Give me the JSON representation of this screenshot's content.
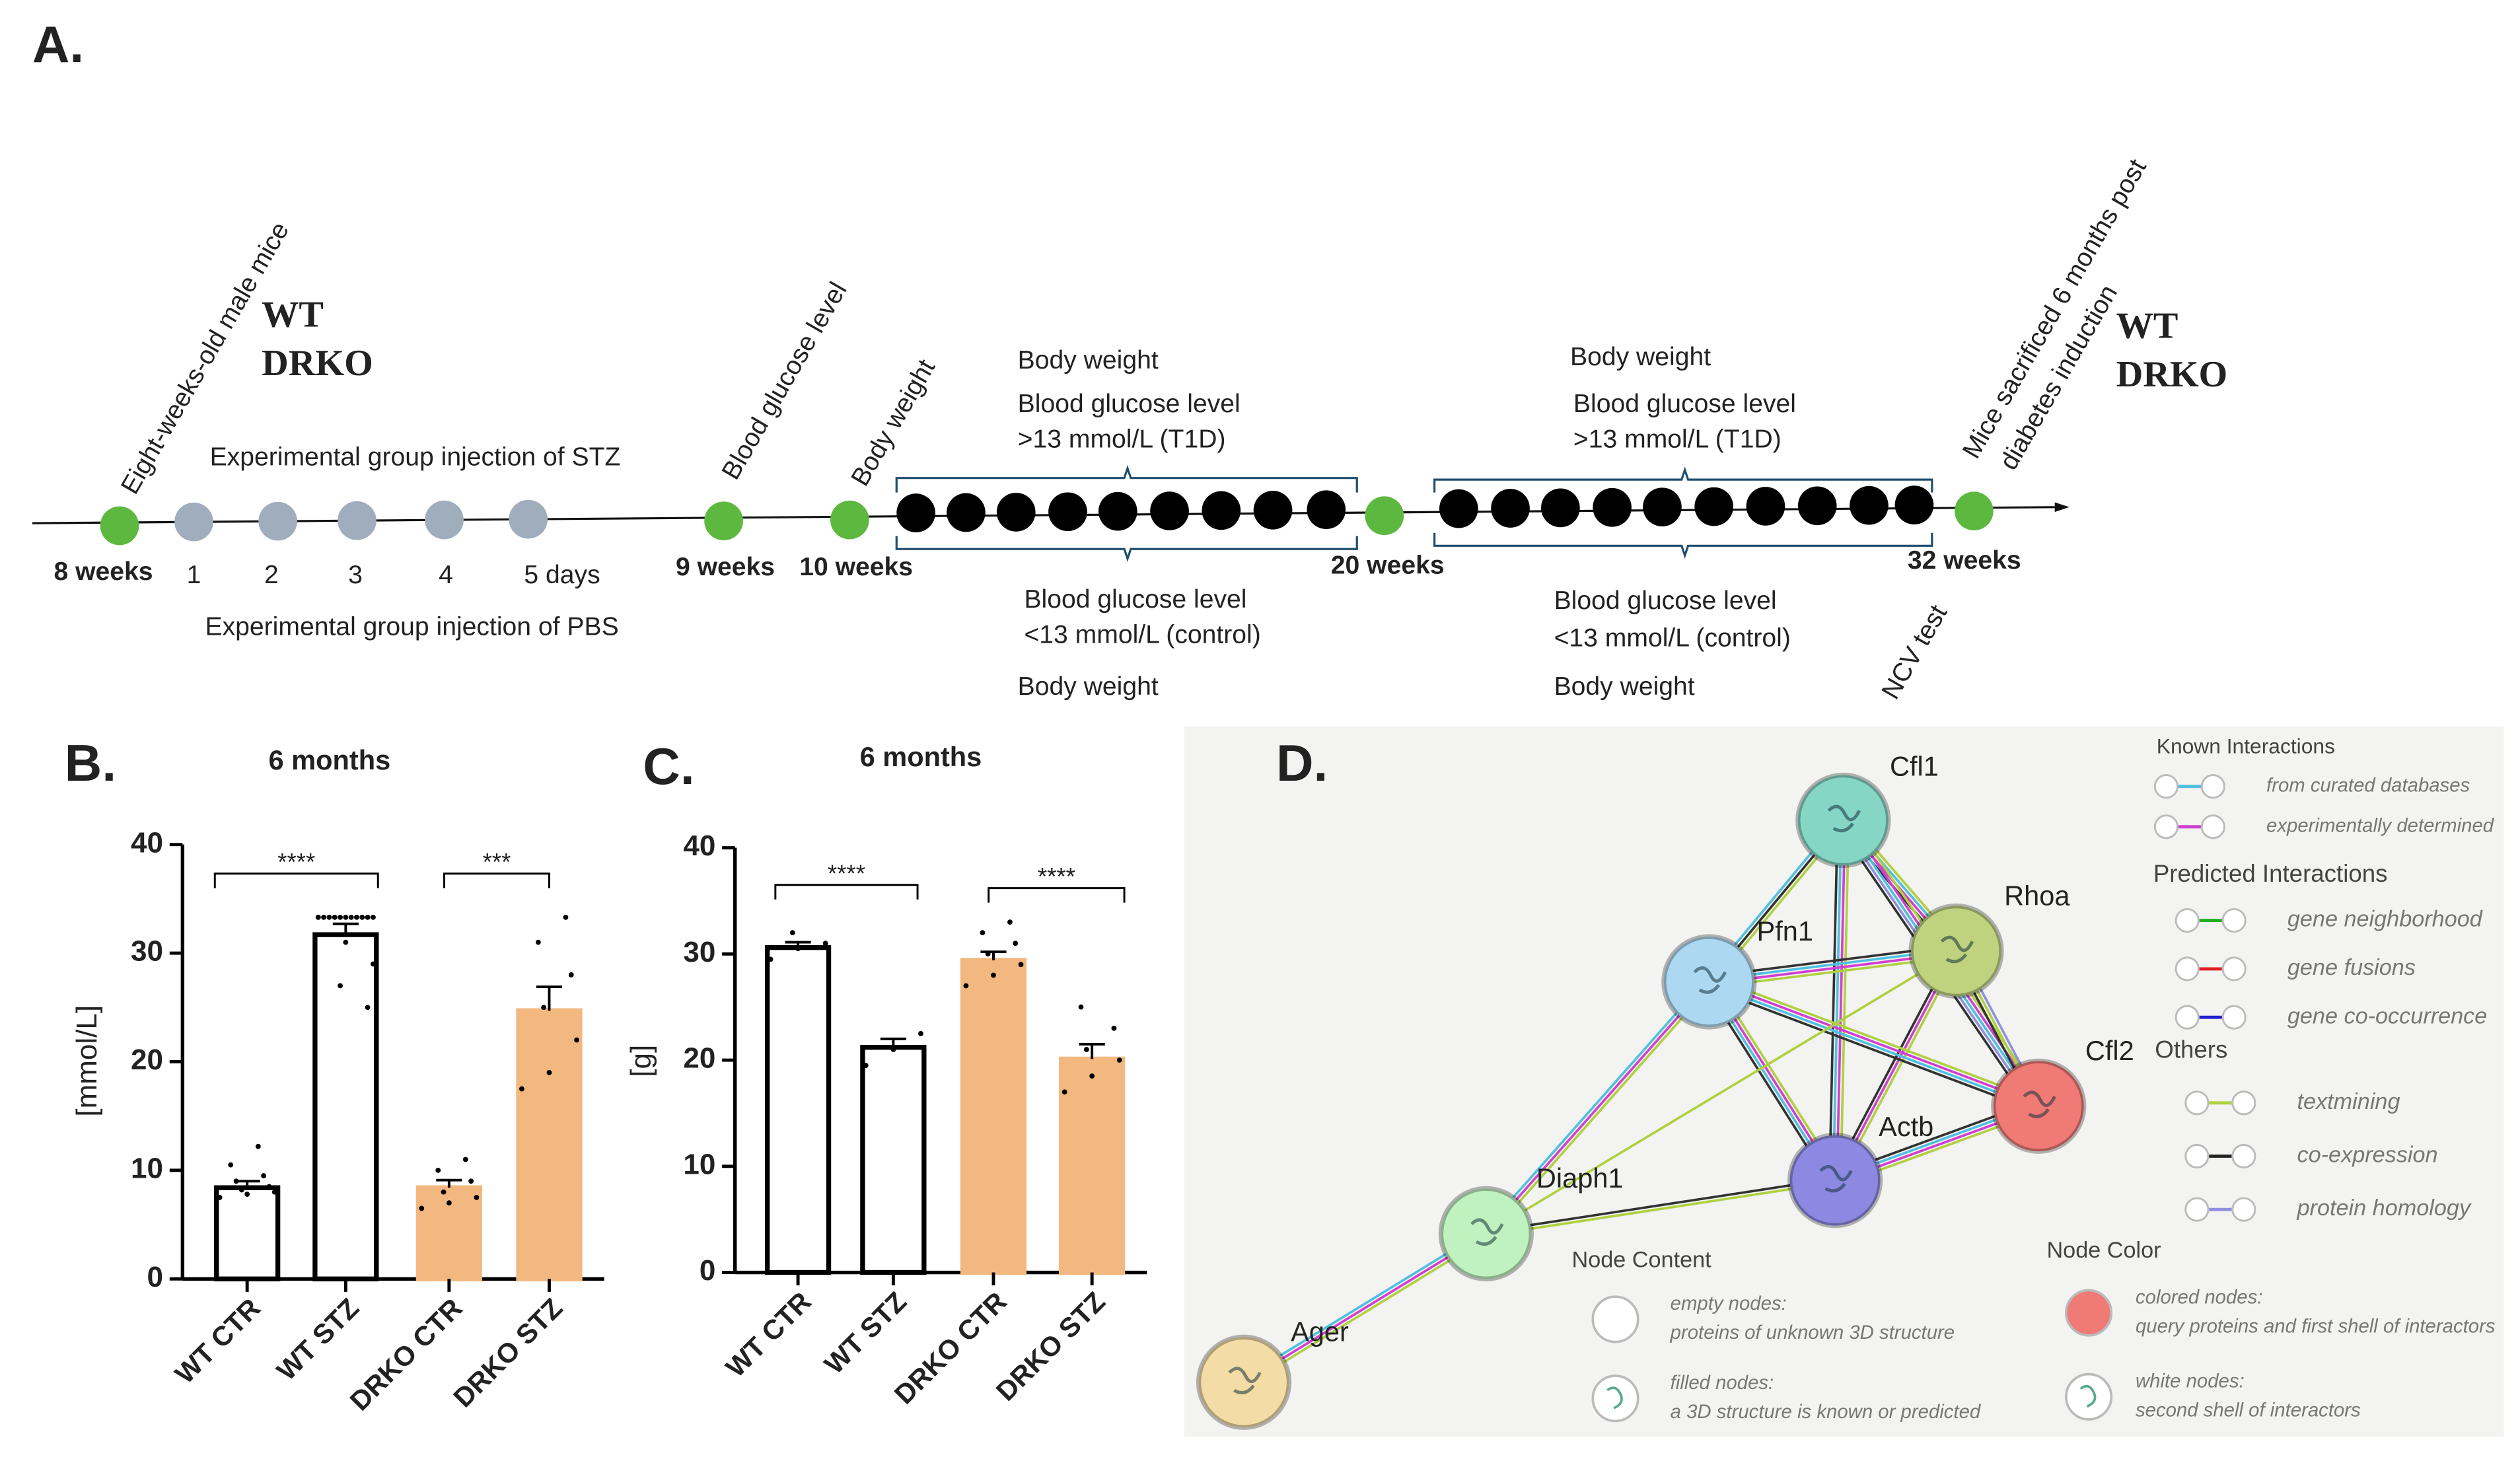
{
  "panel_a": {
    "label": "A.",
    "groups_left": [
      "WT",
      "DRKO"
    ],
    "groups_right": [
      "WT",
      "DRKO"
    ],
    "start_note": "Eight-weeks-old male mice",
    "timepoints": [
      "8 weeks",
      "9 weeks",
      "10 weeks",
      "20 weeks",
      "32 weeks"
    ],
    "injection_days": [
      "1",
      "2",
      "3",
      "4",
      "5 days"
    ],
    "stz_note": "Experimental group injection of STZ",
    "pbs_note": "Experimental group injection of PBS",
    "week9_note": "Blood glucose level",
    "week10_note": "Body weight",
    "end_note": [
      "Mice sacrificed 6 months post",
      "diabetes induction"
    ],
    "ncv_note": "NCV test",
    "period_1": {
      "above": [
        "Body weight",
        "Blood glucose level",
        ">13 mmol/L (T1D)"
      ],
      "below": [
        "Blood glucose level",
        "<13 mmol/L (control)",
        "Body weight"
      ]
    },
    "period_2": {
      "above": [
        "Body weight",
        "Blood glucose level",
        ">13 mmol/L (T1D)"
      ],
      "below": [
        "Blood glucose level",
        "<13 mmol/L (control)",
        "Body weight"
      ]
    }
  },
  "chart_data": [
    {
      "type": "bar",
      "panel_label": "B.",
      "title": "6 months",
      "y_label": "[mmol/L]",
      "categories": [
        "WT CTR",
        "WT STZ",
        "DRKO CTR",
        "DRKO STZ"
      ],
      "values": [
        8.4,
        31.7,
        8.4,
        24.7
      ],
      "errors": [
        0.6,
        1.0,
        0.7,
        2.2
      ],
      "colors": [
        "#ffffff",
        "#ffffff",
        "#f2b880",
        "#f2b880"
      ],
      "points": [
        [
          7.5,
          7.8,
          8,
          8.2,
          8.5,
          9,
          9.5,
          10.5,
          12.2
        ],
        [
          33.3,
          33.3,
          33.3,
          33.3,
          33.3,
          33.3,
          33.3,
          33.3,
          33.3,
          33.3,
          33.3,
          33.3,
          31,
          29,
          27,
          25
        ],
        [
          6.5,
          7,
          7.5,
          8,
          9,
          10,
          11
        ],
        [
          17.5,
          19,
          22,
          25,
          28,
          31,
          33.3
        ]
      ],
      "significance_labels": [
        "****",
        "***"
      ],
      "ylim": [
        0,
        40
      ],
      "yticks": [
        0,
        10,
        20,
        30,
        40
      ]
    },
    {
      "type": "bar",
      "panel_label": "C.",
      "title": "6 months",
      "y_label": "[g]",
      "categories": [
        "WT CTR",
        "WT STZ",
        "DRKO CTR",
        "DRKO STZ"
      ],
      "values": [
        30.6,
        21.2,
        29.4,
        20.1
      ],
      "errors": [
        0.5,
        0.8,
        0.8,
        1.4
      ],
      "colors": [
        "#ffffff",
        "#ffffff",
        "#f2b880",
        "#f2b880"
      ],
      "points": [
        [
          29.5,
          30.5,
          31,
          32
        ],
        [
          19.5,
          21,
          22.5
        ],
        [
          27,
          28,
          29,
          30,
          31,
          32,
          33
        ],
        [
          17,
          18.5,
          20,
          21,
          23,
          25
        ]
      ],
      "significance_labels": [
        "****",
        "****"
      ],
      "ylim": [
        0,
        40
      ],
      "yticks": [
        0,
        10,
        20,
        30,
        40
      ]
    }
  ],
  "network": {
    "label": "D.",
    "nodes": [
      {
        "name": "Cfl1",
        "color": "#86d6c6"
      },
      {
        "name": "Rhoa",
        "color": "#bfd37e"
      },
      {
        "name": "Pfn1",
        "color": "#acd8f2"
      },
      {
        "name": "Cfl2",
        "color": "#f07a76"
      },
      {
        "name": "Actb",
        "color": "#8d89e2"
      },
      {
        "name": "Diaph1",
        "color": "#c0f2c0"
      },
      {
        "name": "Ager",
        "color": "#f4dca6"
      }
    ],
    "known": {
      "title": "Known Interactions",
      "items": [
        {
          "label": "from curated databases",
          "color": "#4fc0e0"
        },
        {
          "label": "experimentally determined",
          "color": "#d040d0"
        }
      ]
    },
    "predicted": {
      "title": "Predicted Interactions",
      "items": [
        {
          "label": "gene neighborhood",
          "color": "#20b020"
        },
        {
          "label": "gene fusions",
          "color": "#e02020"
        },
        {
          "label": "gene co-occurrence",
          "color": "#2020d0"
        }
      ]
    },
    "others": {
      "title": "Others",
      "items": [
        {
          "label": "textmining",
          "color": "#b0d040"
        },
        {
          "label": "co-expression",
          "color": "#222222"
        },
        {
          "label": "protein homology",
          "color": "#9090e0"
        }
      ]
    },
    "node_content": {
      "title": "Node Content",
      "items": [
        {
          "title": "empty nodes:",
          "text": "proteins of unknown 3D structure"
        },
        {
          "title": "filled nodes:",
          "text": "a 3D structure is known or predicted"
        }
      ]
    },
    "node_color": {
      "title": "Node Color",
      "items": [
        {
          "title": "colored nodes:",
          "text": "query proteins and first shell of interactors"
        },
        {
          "title": "white nodes:",
          "text": "second shell of interactors"
        }
      ]
    }
  }
}
